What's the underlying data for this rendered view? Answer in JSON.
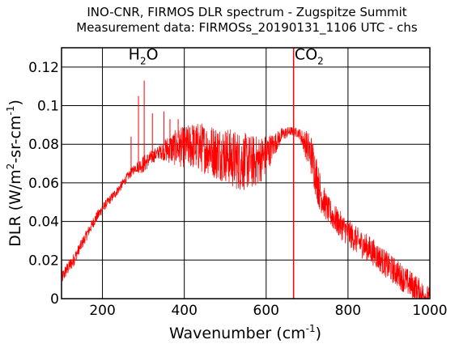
{
  "chart_data": {
    "type": "line",
    "title": "INO-CNR, FIRMOS DLR spectrum - Zugspitze Summit",
    "subtitle": "Measurement data: FIRMOSs_20190131_1106 UTC - chs",
    "xlabel": {
      "main": "Wavenumber (cm",
      "sup": "-1",
      "tail": ")"
    },
    "ylabel": {
      "p1": "DLR (W/m",
      "sup1": "2",
      "p2": "-sr-cm",
      "sup2": "-1",
      "p3": ")"
    },
    "xlim": [
      100,
      1000
    ],
    "ylim": [
      0,
      0.13
    ],
    "x_ticks": [
      200,
      400,
      600,
      800,
      1000
    ],
    "x_tick_labels": [
      "200",
      "400",
      "600",
      "800",
      "1000"
    ],
    "y_ticks": [
      0,
      0.02,
      0.04,
      0.06,
      0.08,
      0.1,
      0.12
    ],
    "y_tick_labels": [
      "0",
      "0.02",
      "0.04",
      "0.06",
      "0.08",
      "0.1",
      "0.12"
    ],
    "grid": true,
    "line_color": "#ff0000",
    "vertical_marker_x": 667,
    "annotations": [
      {
        "main": "H",
        "sub": "2",
        "tail": "O",
        "x": 300,
        "y": 0.124
      },
      {
        "main": "CO",
        "sub": "2",
        "tail": "",
        "x": 705,
        "y": 0.124
      }
    ],
    "series": [
      {
        "x": [
          100,
          110,
          120,
          130,
          140,
          150,
          160,
          170,
          180,
          190,
          200,
          220,
          240,
          260,
          280,
          300,
          320,
          340,
          360,
          380,
          400,
          420,
          440,
          460,
          480,
          500,
          520,
          540,
          560,
          580,
          600,
          620,
          640,
          660,
          680,
          700,
          710,
          720,
          730,
          740,
          750,
          760,
          780,
          800,
          820,
          840,
          860,
          880,
          900,
          920,
          940,
          960,
          980,
          1000
        ],
        "y": [
          0.012,
          0.016,
          0.019,
          0.022,
          0.026,
          0.03,
          0.034,
          0.038,
          0.042,
          0.045,
          0.048,
          0.053,
          0.058,
          0.064,
          0.069,
          0.072,
          0.075,
          0.078,
          0.081,
          0.083,
          0.084,
          0.085,
          0.085,
          0.084,
          0.083,
          0.082,
          0.08,
          0.079,
          0.078,
          0.078,
          0.08,
          0.083,
          0.087,
          0.088,
          0.087,
          0.083,
          0.08,
          0.072,
          0.062,
          0.055,
          0.05,
          0.047,
          0.042,
          0.038,
          0.034,
          0.031,
          0.028,
          0.024,
          0.02,
          0.017,
          0.013,
          0.01,
          0.006,
          0.003
        ],
        "noise": [
          0.006,
          0.006,
          0.006,
          0.006,
          0.005,
          0.005,
          0.005,
          0.005,
          0.005,
          0.005,
          0.004,
          0.004,
          0.004,
          0.004,
          0.004,
          0.008,
          0.006,
          0.006,
          0.012,
          0.016,
          0.018,
          0.02,
          0.022,
          0.022,
          0.024,
          0.024,
          0.026,
          0.026,
          0.024,
          0.022,
          0.018,
          0.01,
          0.006,
          0.004,
          0.004,
          0.014,
          0.018,
          0.02,
          0.018,
          0.014,
          0.012,
          0.012,
          0.012,
          0.012,
          0.012,
          0.012,
          0.012,
          0.012,
          0.012,
          0.012,
          0.012,
          0.012,
          0.012,
          0.01
        ]
      }
    ],
    "spikes": [
      {
        "x": 270,
        "y": 0.084
      },
      {
        "x": 288,
        "y": 0.105
      },
      {
        "x": 302,
        "y": 0.113
      },
      {
        "x": 322,
        "y": 0.096
      },
      {
        "x": 350,
        "y": 0.097
      },
      {
        "x": 365,
        "y": 0.093
      },
      {
        "x": 385,
        "y": 0.093
      },
      {
        "x": 420,
        "y": 0.09
      }
    ]
  }
}
